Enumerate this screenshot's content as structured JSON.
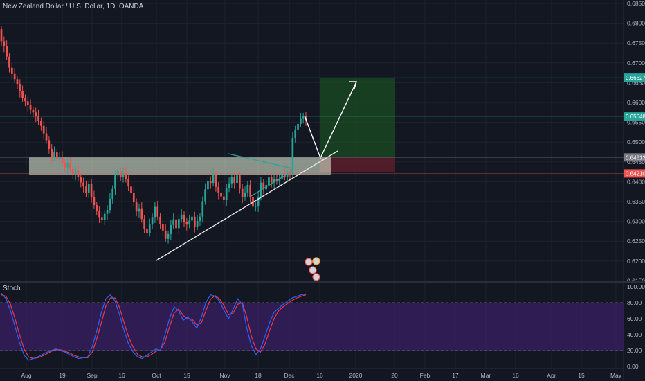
{
  "symbol_title": "New Zealand Dollar / U.S. Dollar, 1D, OANDA",
  "stoch_title": "Stoch",
  "colors": {
    "background": "#131722",
    "grid": "#1f2331",
    "up": "#26a69a",
    "down": "#ef5350",
    "stoch_k": "#2962ff",
    "stoch_d": "#f23645",
    "stoch_band": "#3a1f63",
    "zone": "#d3e0c8",
    "target": "#1b5e20",
    "stop": "#5b1d2c",
    "text": "#b2b5be"
  },
  "chart_data": [
    {
      "type": "candlestick",
      "title": "New Zealand Dollar / U.S. Dollar, 1D, OANDA",
      "x_ticks": [
        "Aug",
        "19",
        "Sep",
        "16",
        "Oct",
        "15",
        "Nov",
        "18",
        "Dec",
        "16",
        "2020",
        "20",
        "Feb",
        "17",
        "Mar",
        "16",
        "Apr",
        "15",
        "May"
      ],
      "y_ticks": [
        "0.68500",
        "0.68000",
        "0.67500",
        "0.67000",
        "0.66500",
        "0.66000",
        "0.65500",
        "0.65000",
        "0.64500",
        "0.64000",
        "0.63500",
        "0.63000",
        "0.62500",
        "0.62000",
        "0.61500"
      ],
      "ylim": [
        0.6145,
        0.6855
      ],
      "price_labels": [
        {
          "value": "0.66627",
          "color": "#26a69a"
        },
        {
          "value": "0.65648",
          "color": "#26a69a"
        },
        {
          "value": "0.64613",
          "color": "#787b86"
        },
        {
          "value": "0.64210",
          "color": "#ef5350"
        }
      ],
      "approx_closes": [
        0.6755,
        0.6742,
        0.6716,
        0.6688,
        0.6672,
        0.6659,
        0.6647,
        0.6628,
        0.6611,
        0.6603,
        0.6593,
        0.6581,
        0.6575,
        0.6566,
        0.6553,
        0.6541,
        0.6522,
        0.6505,
        0.6483,
        0.6461,
        0.6474,
        0.6456,
        0.6462,
        0.6448,
        0.6436,
        0.6448,
        0.6432,
        0.6419,
        0.6428,
        0.6411,
        0.6398,
        0.6388,
        0.6371,
        0.6394,
        0.6362,
        0.6341,
        0.6327,
        0.6311,
        0.6303,
        0.6319,
        0.6329,
        0.6357,
        0.6382,
        0.6416,
        0.6427,
        0.6413,
        0.6422,
        0.6407,
        0.6388,
        0.6371,
        0.6349,
        0.6325,
        0.6333,
        0.6306,
        0.6282,
        0.6271,
        0.6292,
        0.6311,
        0.6337,
        0.6312,
        0.6294,
        0.6277,
        0.6256,
        0.6268,
        0.6291,
        0.6305,
        0.6283,
        0.6306,
        0.6317,
        0.6298,
        0.6292,
        0.6302,
        0.6312,
        0.6287,
        0.6301,
        0.6312,
        0.6351,
        0.6381,
        0.6402,
        0.6397,
        0.6418,
        0.6387,
        0.6371,
        0.6363,
        0.6354,
        0.6383,
        0.6396,
        0.6411,
        0.6397,
        0.6416,
        0.6382,
        0.6361,
        0.6373,
        0.6392,
        0.6362,
        0.6337,
        0.6339,
        0.6362,
        0.6398,
        0.6381,
        0.6392,
        0.6411,
        0.6398,
        0.6406,
        0.6402,
        0.6408,
        0.6418,
        0.6413,
        0.6421,
        0.6419,
        0.6511,
        0.6532,
        0.6546,
        0.6559,
        0.6565,
        0.6556
      ]
    },
    {
      "type": "line",
      "title": "Stoch",
      "y_ticks": [
        "100.00",
        "80.00",
        "60.00",
        "40.00",
        "20.00",
        "0.00"
      ],
      "ylim": [
        0,
        100
      ],
      "bands": [
        20,
        80
      ],
      "series": [
        {
          "values": [
            92,
            85,
            70,
            50,
            30,
            14,
            8,
            10,
            12,
            15,
            18,
            20,
            22,
            20,
            18,
            15,
            12,
            10,
            11,
            12,
            25,
            45,
            68,
            85,
            90,
            82,
            65,
            45,
            28,
            18,
            12,
            10,
            14,
            18,
            22,
            20,
            40,
            60,
            75,
            70,
            58,
            62,
            56,
            48,
            62,
            80,
            90,
            88,
            82,
            70,
            60,
            72,
            85,
            78,
            48,
            26,
            15,
            22,
            38,
            55,
            68,
            73,
            78,
            82,
            86,
            88,
            90,
            91
          ]
        },
        {
          "values": [
            90,
            88,
            78,
            60,
            40,
            22,
            12,
            10,
            11,
            13,
            16,
            19,
            21,
            21,
            19,
            17,
            14,
            12,
            11,
            11,
            18,
            35,
            55,
            76,
            86,
            86,
            74,
            55,
            37,
            24,
            15,
            12,
            12,
            15,
            19,
            21,
            31,
            50,
            67,
            72,
            64,
            60,
            59,
            52,
            55,
            70,
            84,
            89,
            85,
            76,
            65,
            67,
            78,
            80,
            62,
            38,
            22,
            18,
            28,
            45,
            60,
            70,
            75,
            79,
            83,
            86,
            88,
            90
          ]
        }
      ]
    }
  ]
}
